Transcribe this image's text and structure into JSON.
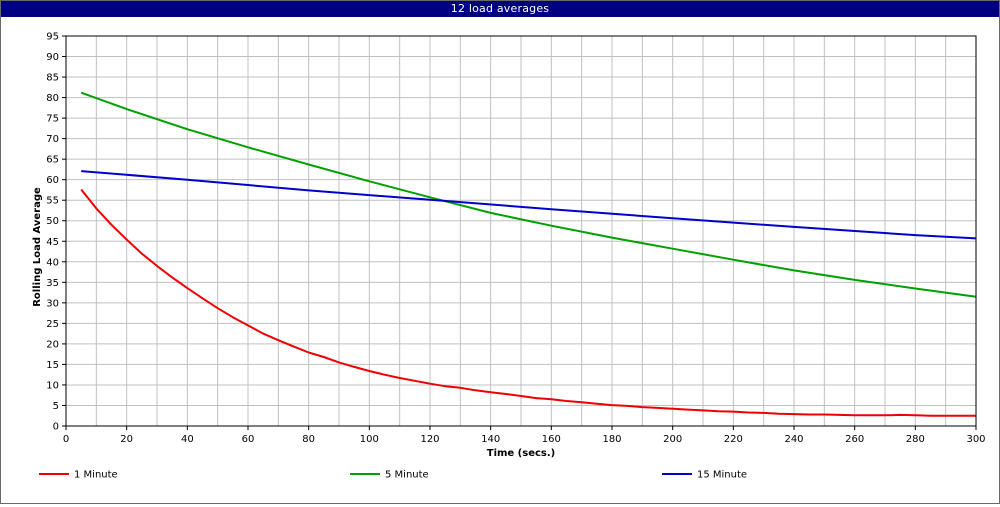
{
  "window": {
    "title": "12 load averages"
  },
  "colors": {
    "titlebar": "#000080",
    "grid": "#c0c0c0",
    "axis": "#000000"
  },
  "chart_data": {
    "type": "line",
    "title": "12 load averages",
    "xlabel": "Time (secs.)",
    "ylabel": "Rolling Load Average",
    "xlim": [
      0,
      300
    ],
    "ylim": [
      0,
      95
    ],
    "xticks": [
      0,
      20,
      40,
      60,
      80,
      100,
      120,
      140,
      160,
      180,
      200,
      220,
      240,
      260,
      280,
      300
    ],
    "yticks": [
      0,
      5,
      10,
      15,
      20,
      25,
      30,
      35,
      40,
      45,
      50,
      55,
      60,
      65,
      70,
      75,
      80,
      85,
      90,
      95
    ],
    "xminor_step": 10,
    "grid": true,
    "legend_position": "bottom",
    "series": [
      {
        "name": "1 Minute",
        "color": "#ee0000",
        "x": [
          5,
          10,
          15,
          20,
          25,
          30,
          35,
          40,
          45,
          50,
          55,
          60,
          65,
          70,
          75,
          80,
          85,
          90,
          95,
          100,
          105,
          110,
          115,
          120,
          125,
          130,
          135,
          140,
          145,
          150,
          155,
          160,
          165,
          170,
          175,
          180,
          185,
          190,
          195,
          200,
          205,
          210,
          215,
          220,
          225,
          230,
          235,
          240,
          245,
          250,
          255,
          260,
          265,
          270,
          275,
          280,
          285,
          290,
          295,
          300
        ],
        "y": [
          57.6,
          53.0,
          49.0,
          45.4,
          42.0,
          39.0,
          36.2,
          33.6,
          31.1,
          28.7,
          26.5,
          24.5,
          22.5,
          20.9,
          19.4,
          17.9,
          16.8,
          15.5,
          14.4,
          13.4,
          12.5,
          11.7,
          11.0,
          10.3,
          9.7,
          9.3,
          8.7,
          8.2,
          7.8,
          7.3,
          6.8,
          6.5,
          6.1,
          5.8,
          5.4,
          5.1,
          4.9,
          4.6,
          4.4,
          4.2,
          4.0,
          3.8,
          3.6,
          3.5,
          3.3,
          3.2,
          3.0,
          2.9,
          2.8,
          2.8,
          2.7,
          2.6,
          2.6,
          2.6,
          2.7,
          2.6,
          2.5,
          2.5,
          2.5,
          2.5
        ]
      },
      {
        "name": "5 Minute",
        "color": "#00a000",
        "x": [
          5,
          20,
          40,
          60,
          80,
          100,
          120,
          140,
          160,
          180,
          200,
          220,
          240,
          260,
          280,
          300
        ],
        "y": [
          81.2,
          77.2,
          72.3,
          67.9,
          63.7,
          59.6,
          55.7,
          51.9,
          48.8,
          45.9,
          43.2,
          40.5,
          37.9,
          35.6,
          33.5,
          31.5
        ]
      },
      {
        "name": "15 Minute",
        "color": "#0000cc",
        "x": [
          5,
          40,
          80,
          120,
          160,
          200,
          240,
          280,
          300
        ],
        "y": [
          62.1,
          60.0,
          57.4,
          55.1,
          52.8,
          50.6,
          48.5,
          46.5,
          45.7
        ]
      }
    ]
  }
}
